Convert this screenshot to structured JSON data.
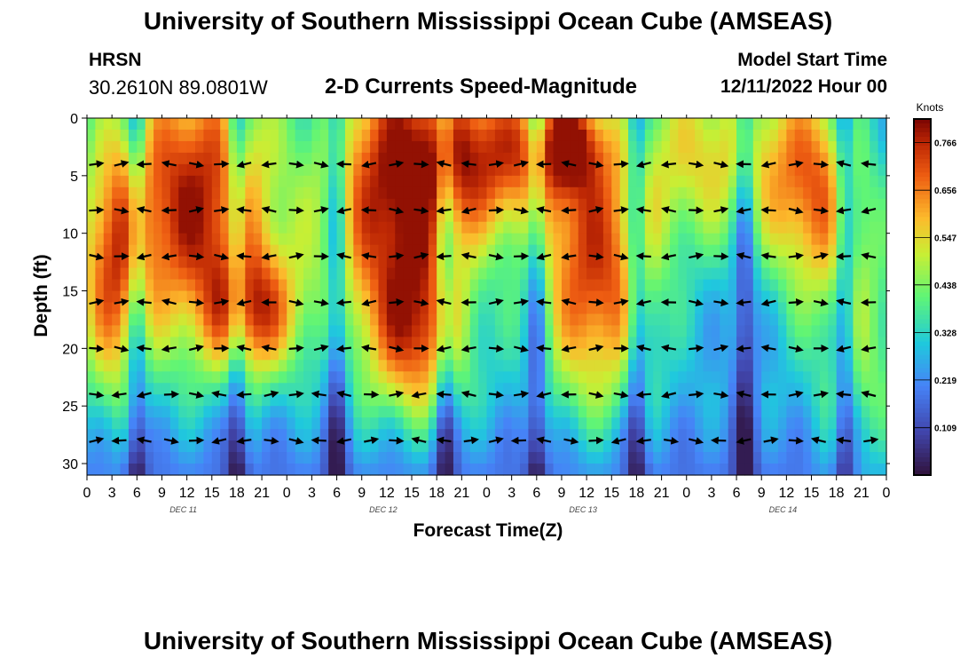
{
  "header": {
    "title": "University of Southern Mississippi Ocean Cube (AMSEAS)",
    "station": "HRSN",
    "coordinates": "30.2610N  89.0801W",
    "plot_title": "2-D Currents Speed-Magnitude",
    "start_label": "Model Start Time",
    "start_value": "12/11/2022 Hour 00"
  },
  "footer": {
    "title": "University of Southern Mississippi Ocean Cube (AMSEAS)"
  },
  "chart_data": {
    "type": "heatmap",
    "title": "2-D Currents Speed-Magnitude",
    "xlabel": "Forecast Time(Z)",
    "ylabel": "Depth (ft)",
    "x_ticks": [
      "0",
      "3",
      "6",
      "9",
      "12",
      "15",
      "18",
      "21",
      "0",
      "3",
      "6",
      "9",
      "12",
      "15",
      "18",
      "21",
      "0",
      "3",
      "6",
      "9",
      "12",
      "15",
      "18",
      "21",
      "0",
      "3",
      "6",
      "9",
      "12",
      "15",
      "18",
      "21",
      "0"
    ],
    "x_range_hours": [
      0,
      96
    ],
    "day_labels": [
      {
        "label": "DEC 11",
        "hour": 12
      },
      {
        "label": "DEC 12",
        "hour": 36
      },
      {
        "label": "DEC 13",
        "hour": 60
      },
      {
        "label": "DEC 14",
        "hour": 84
      }
    ],
    "y_ticks": [
      0,
      5,
      10,
      15,
      20,
      25,
      30
    ],
    "ylim": [
      0,
      31
    ],
    "colorbar": {
      "unit": "Knots",
      "ticks": [
        "0.766",
        "0.656",
        "0.547",
        "0.438",
        "0.328",
        "0.219",
        "0.109"
      ],
      "range": [
        0.0,
        0.82
      ]
    },
    "depths_ft": [
      4,
      8,
      12,
      16,
      20,
      24,
      28
    ],
    "speed_peaks": [
      {
        "hour": 13,
        "value": 0.78
      },
      {
        "hour": 37,
        "value": 0.76
      },
      {
        "hour": 61,
        "value": 0.72
      },
      {
        "hour": 87,
        "value": 0.62
      }
    ]
  }
}
